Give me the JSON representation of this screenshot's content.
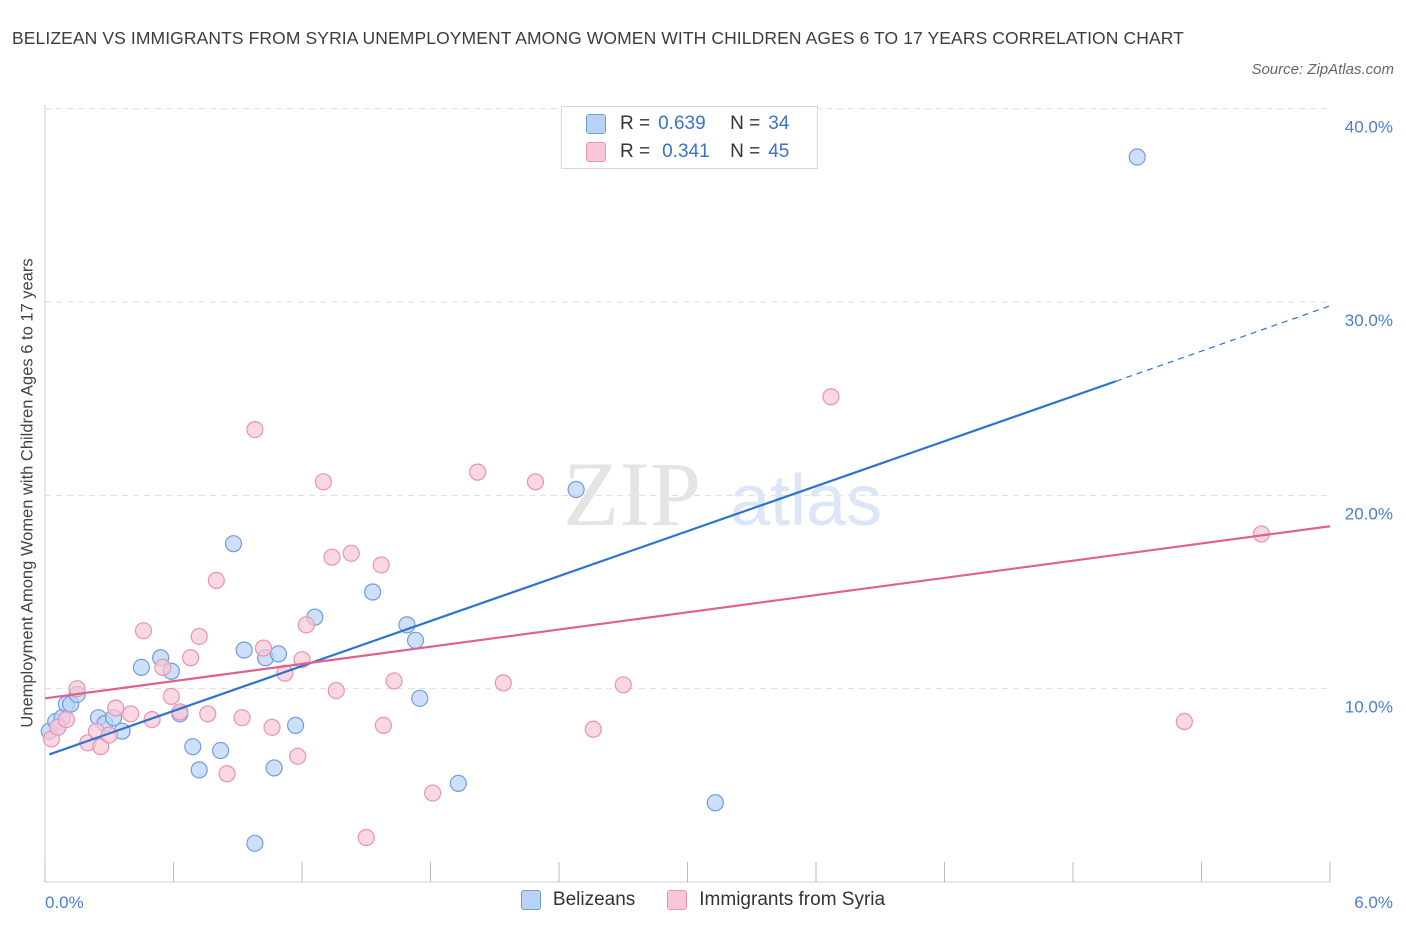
{
  "title": "BELIZEAN VS IMMIGRANTS FROM SYRIA UNEMPLOYMENT AMONG WOMEN WITH CHILDREN AGES 6 TO 17 YEARS CORRELATION CHART",
  "source": "Source: ZipAtlas.com",
  "watermark": {
    "zip": "ZIP",
    "atlas": "atlas"
  },
  "legend_top": {
    "rows": [
      {
        "r_label": "R =",
        "r_value": "0.639",
        "n_label": "N =",
        "n_value": "34"
      },
      {
        "r_label": "R =",
        "r_value": "0.341",
        "n_label": "N =",
        "n_value": "45"
      }
    ]
  },
  "colors": {
    "belizeans_fill": "#b9d3f6",
    "belizeans_stroke": "#6f9ddf",
    "belizeans_line": "#2f72d0",
    "syria_fill": "#f9c6d6",
    "syria_stroke": "#e993b1",
    "syria_line": "#e0608e",
    "grid": "#dddddd",
    "axis_text": "#4a7fd0"
  },
  "chart_data": {
    "type": "scatter",
    "title": "BELIZEAN VS IMMIGRANTS FROM SYRIA UNEMPLOYMENT AMONG WOMEN WITH CHILDREN AGES 6 TO 17 YEARS CORRELATION CHART",
    "xlabel": "",
    "ylabel": "Unemployment Among Women with Children Ages 6 to 17 years",
    "xlim": [
      0,
      6
    ],
    "ylim": [
      0,
      42
    ],
    "x_tick_labels": [
      {
        "value": 0,
        "label": "0.0%"
      },
      {
        "value": 6,
        "label": "6.0%"
      }
    ],
    "y_tick_labels": [
      {
        "value": 10,
        "label": "10.0%"
      },
      {
        "value": 20,
        "label": "20.0%"
      },
      {
        "value": 30,
        "label": "30.0%"
      },
      {
        "value": 40,
        "label": "40.0%"
      }
    ],
    "grid": true,
    "legend_position": "bottom",
    "series": [
      {
        "name": "Belizeans",
        "points": [
          [
            0.02,
            7.8
          ],
          [
            0.05,
            8.3
          ],
          [
            0.08,
            8.5
          ],
          [
            0.1,
            9.2
          ],
          [
            0.12,
            9.2
          ],
          [
            0.15,
            9.7
          ],
          [
            0.25,
            8.5
          ],
          [
            0.28,
            8.2
          ],
          [
            0.32,
            8.5
          ],
          [
            0.36,
            7.8
          ],
          [
            0.45,
            11.1
          ],
          [
            0.54,
            11.6
          ],
          [
            0.59,
            10.9
          ],
          [
            0.63,
            8.7
          ],
          [
            0.69,
            7.0
          ],
          [
            0.72,
            5.8
          ],
          [
            0.82,
            6.8
          ],
          [
            0.88,
            17.5
          ],
          [
            0.93,
            12.0
          ],
          [
            0.98,
            2.0
          ],
          [
            1.03,
            11.6
          ],
          [
            1.07,
            5.9
          ],
          [
            1.09,
            11.8
          ],
          [
            1.17,
            8.1
          ],
          [
            1.26,
            13.7
          ],
          [
            1.53,
            15.0
          ],
          [
            1.69,
            13.3
          ],
          [
            1.73,
            12.5
          ],
          [
            1.75,
            9.5
          ],
          [
            1.93,
            5.1
          ],
          [
            2.48,
            20.3
          ],
          [
            3.13,
            4.1
          ],
          [
            5.1,
            37.5
          ],
          [
            0.06,
            8.0
          ]
        ],
        "trend": {
          "x_start": 0.02,
          "y_start": 6.6,
          "x_solid_end": 5.0,
          "y_solid_end": 25.9,
          "x_dash_end": 6.0,
          "y_dash_end": 29.8
        }
      },
      {
        "name": "Immigrants from Syria",
        "points": [
          [
            0.03,
            7.4
          ],
          [
            0.06,
            8.0
          ],
          [
            0.1,
            8.4
          ],
          [
            0.15,
            10.0
          ],
          [
            0.2,
            7.2
          ],
          [
            0.24,
            7.8
          ],
          [
            0.26,
            7.0
          ],
          [
            0.3,
            7.6
          ],
          [
            0.33,
            9.0
          ],
          [
            0.4,
            8.7
          ],
          [
            0.46,
            13.0
          ],
          [
            0.5,
            8.4
          ],
          [
            0.55,
            11.1
          ],
          [
            0.59,
            9.6
          ],
          [
            0.63,
            8.8
          ],
          [
            0.68,
            11.6
          ],
          [
            0.72,
            12.7
          ],
          [
            0.76,
            8.7
          ],
          [
            0.8,
            15.6
          ],
          [
            0.85,
            5.6
          ],
          [
            0.92,
            8.5
          ],
          [
            0.98,
            23.4
          ],
          [
            1.02,
            12.1
          ],
          [
            1.06,
            8.0
          ],
          [
            1.12,
            10.8
          ],
          [
            1.18,
            6.5
          ],
          [
            1.2,
            11.5
          ],
          [
            1.22,
            13.3
          ],
          [
            1.3,
            20.7
          ],
          [
            1.34,
            16.8
          ],
          [
            1.36,
            9.9
          ],
          [
            1.43,
            17.0
          ],
          [
            1.5,
            2.3
          ],
          [
            1.57,
            16.4
          ],
          [
            1.58,
            8.1
          ],
          [
            1.63,
            10.4
          ],
          [
            1.81,
            4.6
          ],
          [
            2.02,
            21.2
          ],
          [
            2.14,
            10.3
          ],
          [
            2.29,
            20.7
          ],
          [
            2.56,
            7.9
          ],
          [
            2.7,
            10.2
          ],
          [
            3.67,
            25.1
          ],
          [
            5.32,
            8.3
          ],
          [
            5.68,
            18.0
          ]
        ],
        "trend": {
          "x_start": 0.0,
          "y_start": 9.5,
          "x_solid_end": 6.0,
          "y_solid_end": 18.4
        }
      }
    ]
  },
  "legend_bottom": {
    "items": [
      {
        "label": "Belizeans"
      },
      {
        "label": "Immigrants from Syria"
      }
    ]
  }
}
